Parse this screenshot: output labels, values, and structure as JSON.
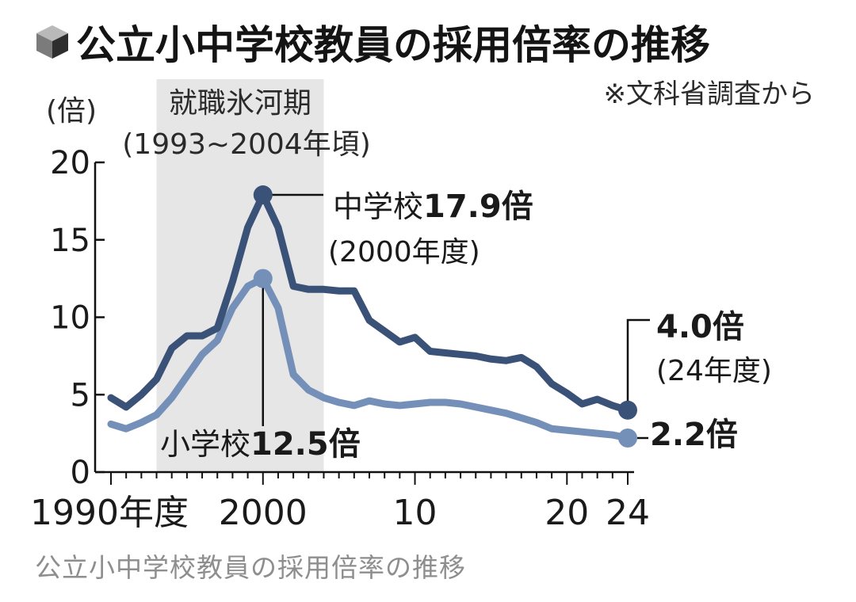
{
  "chart_data": {
    "type": "line",
    "title": "公立小中学校教員の採用倍率の推移",
    "source": "※文科省調査から",
    "ylabel": "(倍)",
    "ylim": [
      0,
      20
    ],
    "yticks": [
      0,
      5,
      10,
      15,
      20
    ],
    "xlim": [
      1990,
      2024
    ],
    "xticks": [
      {
        "x": 1990,
        "label": "1990年度"
      },
      {
        "x": 2000,
        "label": "2000"
      },
      {
        "x": 2010,
        "label": "10"
      },
      {
        "x": 2020,
        "label": "20"
      },
      {
        "x": 2024,
        "label": "24"
      }
    ],
    "shaded_region": {
      "from": 1993,
      "to": 2004,
      "label": "就職氷河期",
      "sublabel": "(1993~2004年頃)"
    },
    "x": [
      1990,
      1991,
      1992,
      1993,
      1994,
      1995,
      1996,
      1997,
      1998,
      1999,
      2000,
      2001,
      2002,
      2003,
      2004,
      2005,
      2006,
      2007,
      2008,
      2009,
      2010,
      2011,
      2012,
      2013,
      2014,
      2015,
      2016,
      2017,
      2018,
      2019,
      2020,
      2021,
      2022,
      2023,
      2024
    ],
    "series": [
      {
        "name": "中学校",
        "color": "#3b5278",
        "values": [
          4.8,
          4.2,
          5.0,
          6.0,
          8.0,
          8.8,
          8.8,
          9.3,
          12.3,
          15.8,
          17.9,
          15.8,
          12.0,
          11.8,
          11.8,
          11.7,
          11.7,
          9.8,
          9.1,
          8.4,
          8.7,
          7.8,
          7.7,
          7.6,
          7.5,
          7.3,
          7.2,
          7.4,
          6.8,
          5.7,
          5.1,
          4.4,
          4.7,
          4.3,
          4.0
        ]
      },
      {
        "name": "小学校",
        "color": "#7490b8",
        "values": [
          3.1,
          2.8,
          3.2,
          3.7,
          4.8,
          6.2,
          7.6,
          8.5,
          10.6,
          12.0,
          12.5,
          10.6,
          6.3,
          5.3,
          4.8,
          4.5,
          4.3,
          4.6,
          4.4,
          4.3,
          4.4,
          4.5,
          4.5,
          4.4,
          4.2,
          4.0,
          3.8,
          3.5,
          3.2,
          2.8,
          2.7,
          2.6,
          2.5,
          2.4,
          2.2
        ]
      }
    ],
    "annotations": {
      "jhs_peak": {
        "name": "中学校",
        "value": "17.9倍",
        "sub": "(2000年度)"
      },
      "es_peak": {
        "name": "小学校",
        "value": "12.5倍"
      },
      "jhs_end": {
        "value": "4.0倍",
        "sub": "(24年度)"
      },
      "es_end": {
        "value": "2.2倍"
      }
    }
  },
  "caption": "公立小中学校教員の採用倍率の推移"
}
